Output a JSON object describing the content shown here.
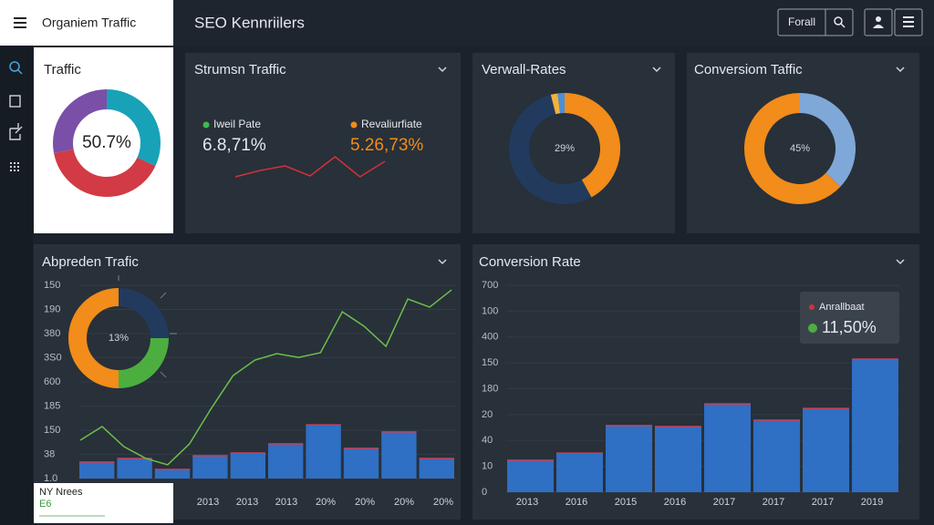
{
  "header": {
    "menu_title": "Organiem Traffic",
    "title": "SEO Kennriilers",
    "filter": "Forall"
  },
  "panels": [
    {
      "type": "pie",
      "title": "Traffic",
      "center_label": "50.7%",
      "values": [
        32,
        40,
        28
      ],
      "colors": [
        "#17a2b8",
        "#d23a45",
        "#7a4fa8"
      ]
    },
    {
      "type": "line",
      "title": "Strumsn Traffic",
      "legend": [
        {
          "name": "Iweil Pate",
          "value": "6.8,71%",
          "color": "#3fb950"
        },
        {
          "name": "Revaliurfiate",
          "value": "5.26,73%",
          "color": "#f28c1a"
        }
      ],
      "values": [
        0.4,
        3.2,
        5.2,
        0.8,
        9.2,
        0.4,
        7.2
      ],
      "color": "#d0323a",
      "ylim": [
        0,
        10
      ]
    },
    {
      "type": "pie",
      "title": "Verwall-Rates",
      "center_label": "29%",
      "values": [
        42,
        54,
        2,
        2
      ],
      "colors": [
        "#f28c1a",
        "#223a5e",
        "#f2b33a",
        "#4a90d9"
      ]
    },
    {
      "type": "pie",
      "title": "Conversiom Taffic",
      "center_label": "45%",
      "values": [
        37,
        63
      ],
      "colors": [
        "#7fa8d8",
        "#f28c1a"
      ]
    },
    {
      "type": "combo",
      "title": "Abpreden Trafic",
      "y_labels": [
        "150",
        "190",
        "380",
        "3S0",
        "600",
        "185",
        "150",
        "38",
        "1.0"
      ],
      "x_labels": [
        "2013",
        "2013",
        "2013",
        "20%",
        "20%",
        "20%",
        "20%"
      ],
      "ylim": [
        0,
        100
      ],
      "bar_color": "#2f6fc4",
      "bar_edge": "#c8405a",
      "line_color": "#6cc04a",
      "bars": [
        8.5,
        10.4,
        4.7,
        11.8,
        13.2,
        17.9,
        27.8,
        15.6,
        24.1,
        10.4
      ],
      "line": [
        19.8,
        26.9,
        16.5,
        10.4,
        7.1,
        17.9,
        36.3,
        53.3,
        61.3,
        64.6,
        62.7,
        65.1,
        86.3,
        78.8,
        68.4,
        92.9,
        88.7,
        97.6
      ],
      "inset": {
        "center_label": "13%",
        "values": [
          25,
          25,
          50
        ],
        "colors": [
          "#223a5e",
          "#4cae3f",
          "#f28c1a"
        ]
      }
    },
    {
      "type": "bar",
      "title": "Conversion Rate",
      "y_labels": [
        "700",
        "100",
        "400",
        "150",
        "180",
        "20",
        "40",
        "10",
        "0"
      ],
      "x_labels": [
        "2013",
        "2016",
        "2015",
        "2016",
        "2017",
        "2017",
        "2017",
        "2019"
      ],
      "ylim": [
        0,
        100
      ],
      "bar_color": "#2f6fc4",
      "bar_edge": "#c8405a",
      "bars": [
        15.4,
        18.9,
        32.2,
        31.7,
        42.7,
        34.8,
        40.5,
        64.3
      ],
      "tooltip": {
        "name": "Anrallbaat",
        "value": "11,50%",
        "name_color": "#d0323a",
        "value_color": "#4cae3f"
      }
    }
  ],
  "note": {
    "title": "NY Nrees",
    "value": "E6"
  }
}
